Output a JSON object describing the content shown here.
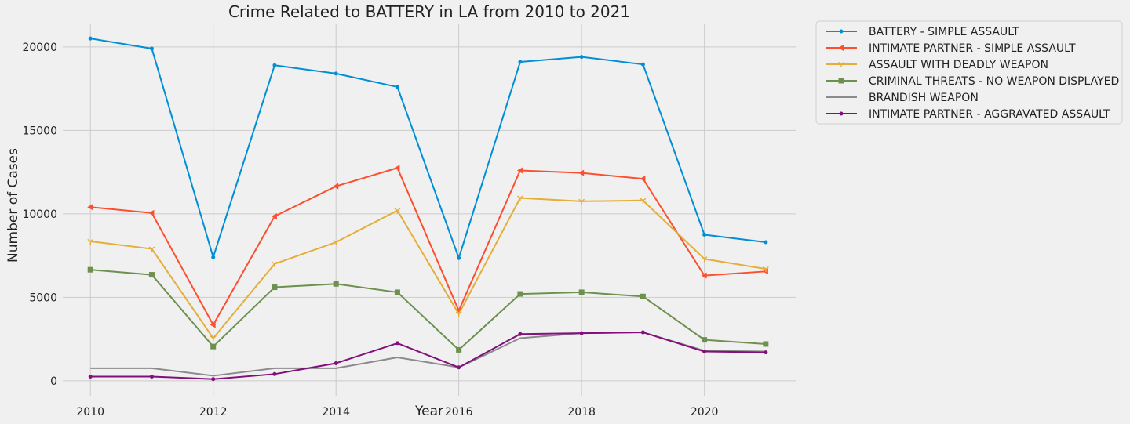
{
  "chart_data": {
    "type": "line",
    "title": "Crime Related to BATTERY in LA from 2010 to 2021",
    "xlabel": "Year",
    "ylabel": "Number of Cases",
    "x": [
      2010,
      2011,
      2012,
      2013,
      2014,
      2015,
      2016,
      2017,
      2018,
      2019,
      2020,
      2021
    ],
    "xlim": [
      2009.55,
      2021.5
    ],
    "ylim": [
      -900,
      21400
    ],
    "xticks": [
      2010,
      2012,
      2014,
      2016,
      2018,
      2020
    ],
    "yticks": [
      0,
      5000,
      10000,
      15000,
      20000
    ],
    "grid": true,
    "legend_position": "outside-top-right",
    "series": [
      {
        "name": "BATTERY - SIMPLE ASSAULT",
        "color": "#008fd5",
        "marker": "point",
        "values": [
          20500,
          19900,
          7400,
          18900,
          18400,
          17600,
          7350,
          19100,
          19400,
          18950,
          8750,
          8300
        ]
      },
      {
        "name": "INTIMATE PARTNER - SIMPLE ASSAULT",
        "color": "#fc4f30",
        "marker": "triangle-left",
        "values": [
          10400,
          10050,
          3350,
          9850,
          11650,
          12750,
          4200,
          12600,
          12450,
          12100,
          6300,
          6550
        ]
      },
      {
        "name": "ASSAULT WITH DEADLY WEAPON",
        "color": "#e5ae38",
        "marker": "tri-down",
        "values": [
          8350,
          7900,
          2550,
          7000,
          8300,
          10200,
          4000,
          10950,
          10750,
          10800,
          7300,
          6700
        ]
      },
      {
        "name": "CRIMINAL THREATS - NO WEAPON DISPLAYED",
        "color": "#6d904f",
        "marker": "square",
        "values": [
          6650,
          6350,
          2050,
          5600,
          5800,
          5300,
          1850,
          5200,
          5300,
          5050,
          2450,
          2200
        ]
      },
      {
        "name": "BRANDISH WEAPON",
        "color": "#8b8b8b",
        "marker": "none",
        "values": [
          750,
          750,
          300,
          750,
          750,
          1400,
          800,
          2550,
          2850,
          2900,
          1800,
          1750
        ]
      },
      {
        "name": "INTIMATE PARTNER - AGGRAVATED ASSAULT",
        "color": "#810f7c",
        "marker": "point",
        "values": [
          250,
          250,
          100,
          400,
          1050,
          2250,
          800,
          2800,
          2850,
          2900,
          1750,
          1700
        ]
      }
    ]
  }
}
